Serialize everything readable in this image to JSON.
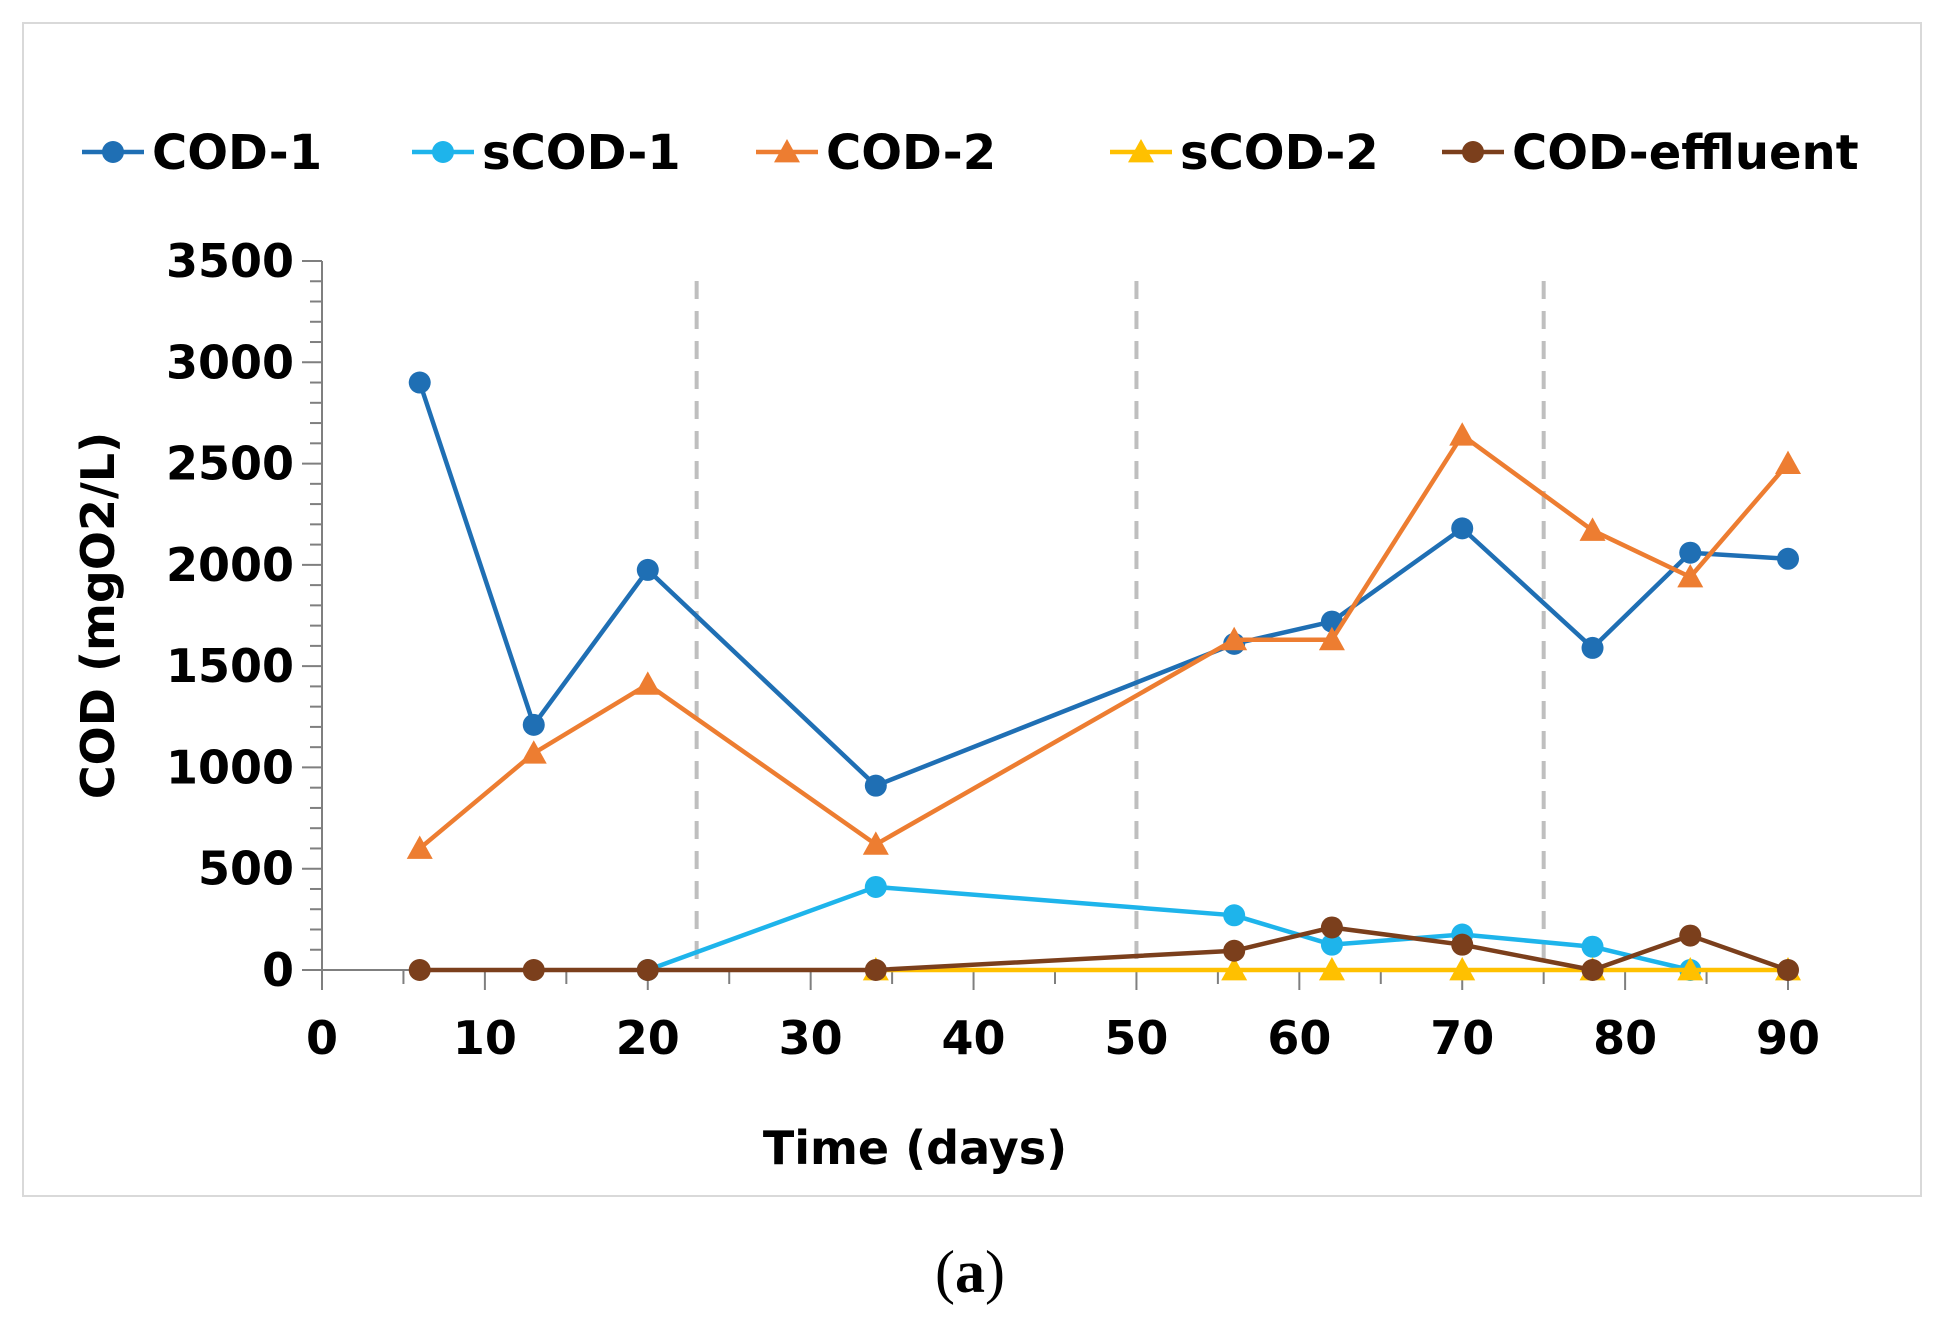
{
  "chart_data": {
    "type": "line",
    "title": "",
    "xlabel": "Time (days)",
    "ylabel": "COD (mgO2/L)",
    "xlim": [
      0,
      90
    ],
    "ylim": [
      0,
      3500
    ],
    "x_ticks": [
      0,
      10,
      20,
      30,
      40,
      50,
      60,
      70,
      80,
      90
    ],
    "y_ticks": [
      0,
      500,
      1000,
      1500,
      2000,
      2500,
      3000,
      3500
    ],
    "grid": false,
    "legend_position": "top",
    "phase_dividers_x": [
      23,
      50,
      75
    ],
    "series": [
      {
        "name": "COD-1",
        "color": "#1f6fb4",
        "marker": "circle",
        "x": [
          6,
          13,
          20,
          34,
          56,
          62,
          70,
          78,
          84,
          90
        ],
        "y": [
          2900,
          1210,
          1975,
          910,
          1610,
          1720,
          2180,
          1590,
          2060,
          2030
        ]
      },
      {
        "name": "sCOD-1",
        "color": "#1eb4eb",
        "marker": "circle",
        "x": [
          20,
          34,
          56,
          62,
          70,
          78,
          84
        ],
        "y": [
          0,
          410,
          270,
          125,
          175,
          115,
          0
        ]
      },
      {
        "name": "COD-2",
        "color": "#ed7d31",
        "marker": "triangle",
        "x": [
          6,
          13,
          20,
          34,
          56,
          62,
          70,
          78,
          84,
          90
        ],
        "y": [
          600,
          1070,
          1410,
          620,
          1630,
          1630,
          2640,
          2170,
          1940,
          2500
        ]
      },
      {
        "name": "sCOD-2",
        "color": "#ffc000",
        "marker": "triangle",
        "x": [
          34,
          56,
          62,
          70,
          78,
          84,
          90
        ],
        "y": [
          0,
          0,
          0,
          0,
          0,
          0,
          0
        ]
      },
      {
        "name": "COD-effluent",
        "color": "#7b3f1c",
        "marker": "circle",
        "x": [
          6,
          13,
          20,
          34,
          56,
          62,
          70,
          78,
          84,
          90
        ],
        "y": [
          0,
          0,
          0,
          0,
          95,
          210,
          125,
          0,
          170,
          0
        ]
      }
    ]
  },
  "panel_label": {
    "open": "(",
    "letter": "a",
    "close": ")"
  }
}
